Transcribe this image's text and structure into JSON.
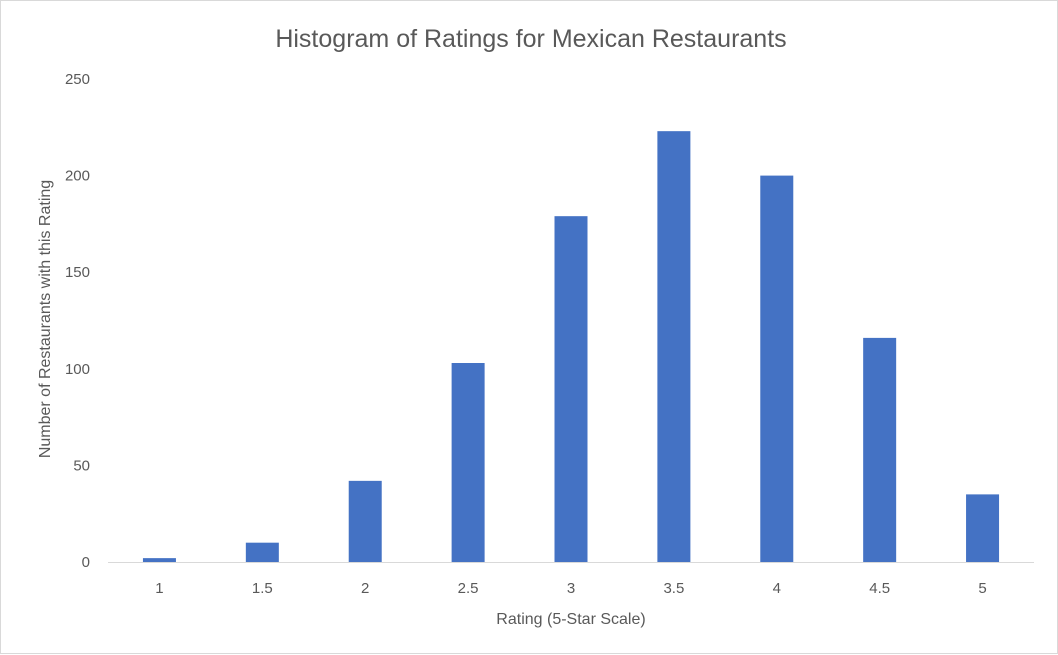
{
  "chart_data": {
    "type": "bar",
    "title": "Histogram of Ratings for Mexican Restaurants",
    "xlabel": "Rating (5-Star Scale)",
    "ylabel": "Number of Restaurants with this Rating",
    "categories": [
      "1",
      "1.5",
      "2",
      "2.5",
      "3",
      "3.5",
      "4",
      "4.5",
      "5"
    ],
    "values": [
      2,
      10,
      42,
      103,
      179,
      223,
      200,
      116,
      35
    ],
    "ylim": [
      0,
      250
    ],
    "yticks": [
      "0",
      "50",
      "100",
      "150",
      "200",
      "250"
    ],
    "grid": false,
    "legend": "none",
    "colors": {
      "bar": "#4472C4",
      "axis": "#d9d9d9",
      "text": "#595959"
    }
  }
}
